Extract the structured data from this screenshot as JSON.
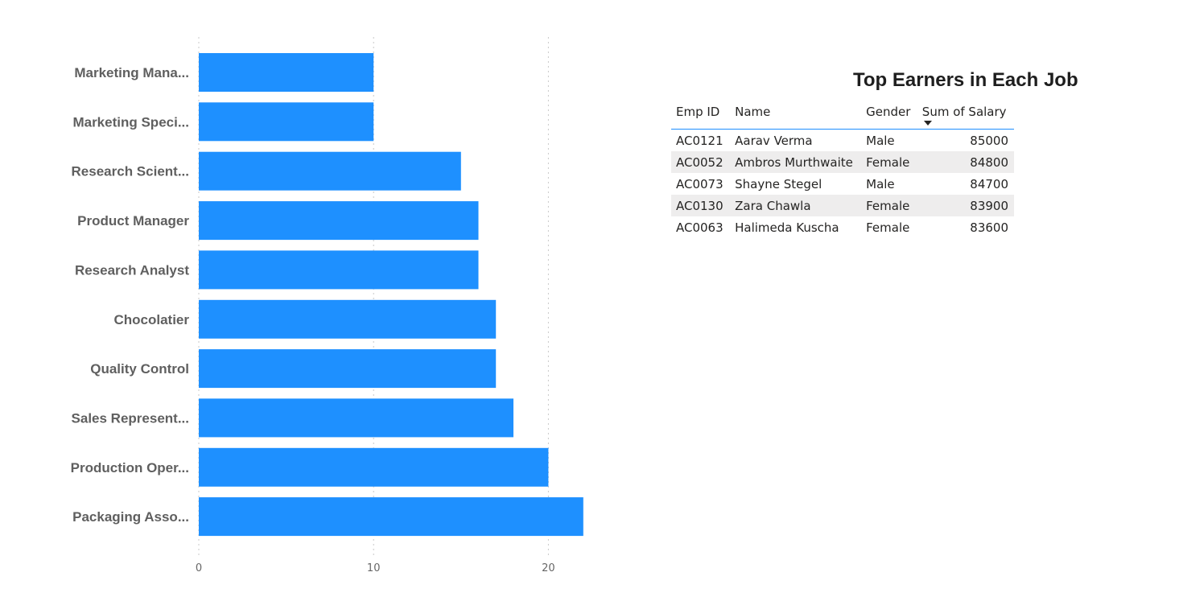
{
  "chart_data": {
    "type": "bar",
    "orientation": "horizontal",
    "categories": [
      "Marketing Mana...",
      "Marketing Speci...",
      "Research Scient...",
      "Product Manager",
      "Research Analyst",
      "Chocolatier",
      "Quality Control",
      "Sales Represent...",
      "Production Oper...",
      "Packaging Asso..."
    ],
    "values": [
      10,
      10,
      15,
      16,
      16,
      17,
      17,
      18,
      20,
      22
    ],
    "xlim": [
      0,
      22.5
    ],
    "xticks": [
      0,
      10,
      20
    ],
    "xtick_labels": [
      "0",
      "10",
      "20"
    ],
    "grid": "vertical dotted",
    "bar_color": "#1e90ff"
  },
  "table": {
    "title": "Top Earners in Each Job",
    "columns": [
      "Emp ID",
      "Name",
      "Gender",
      "Sum of Salary"
    ],
    "sorted_column": "Sum of Salary",
    "sort_direction": "descending",
    "rows": [
      {
        "emp_id": "AC0121",
        "name": "Aarav Verma",
        "gender": "Male",
        "salary": "85000"
      },
      {
        "emp_id": "AC0052",
        "name": "Ambros Murthwaite",
        "gender": "Female",
        "salary": "84800"
      },
      {
        "emp_id": "AC0073",
        "name": "Shayne Stegel",
        "gender": "Male",
        "salary": "84700"
      },
      {
        "emp_id": "AC0130",
        "name": "Zara Chawla",
        "gender": "Female",
        "salary": "83900"
      },
      {
        "emp_id": "AC0063",
        "name": "Halimeda Kuscha",
        "gender": "Female",
        "salary": "83600"
      }
    ]
  }
}
